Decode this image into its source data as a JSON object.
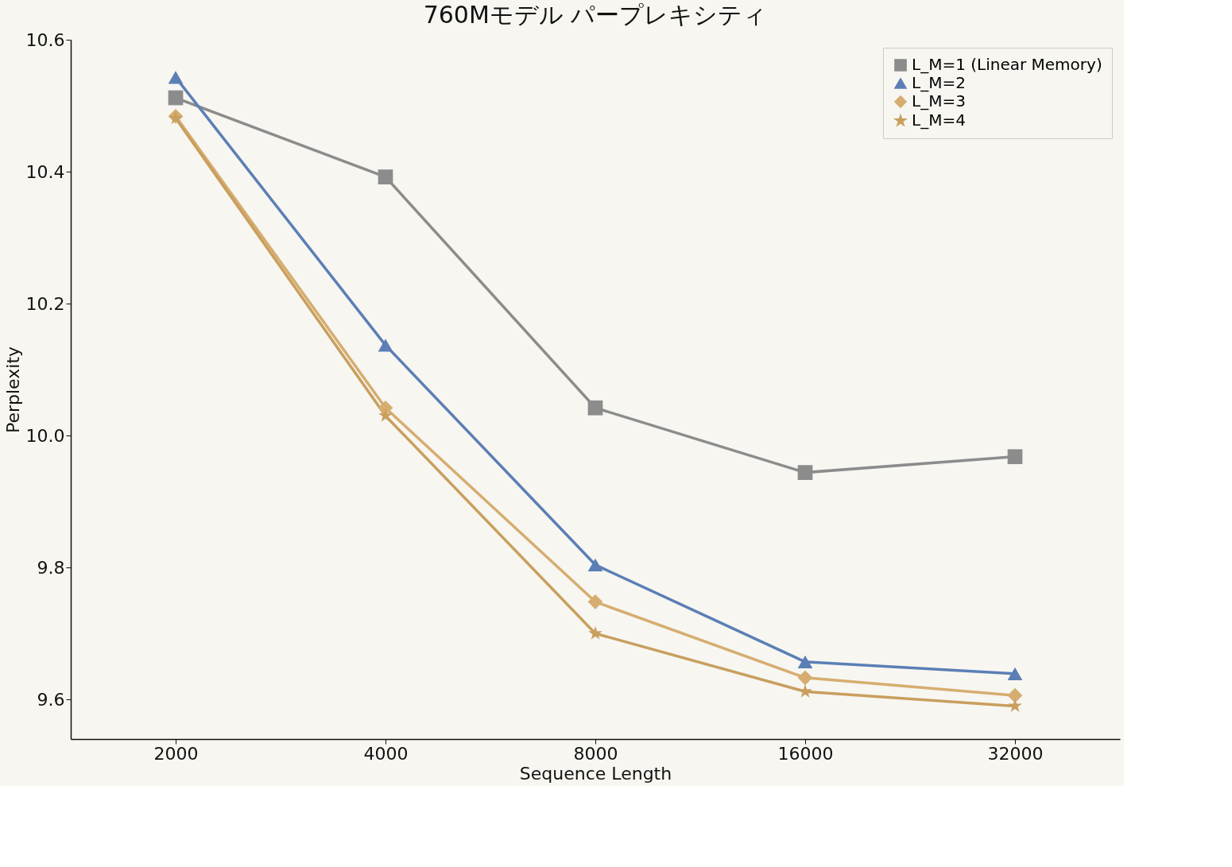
{
  "chart_data": {
    "type": "line",
    "title": "760Mモデル パープレキシティ",
    "xlabel": "Sequence Length",
    "ylabel": "Perplexity",
    "categories": [
      "2000",
      "4000",
      "8000",
      "16000",
      "32000"
    ],
    "ylim": [
      9.54,
      10.6
    ],
    "yticks": [
      {
        "value": 9.6,
        "label": "9.6"
      },
      {
        "value": 9.8,
        "label": "9.8"
      },
      {
        "value": 10.0,
        "label": "10.0"
      },
      {
        "value": 10.2,
        "label": "10.2"
      },
      {
        "value": 10.4,
        "label": "10.4"
      },
      {
        "value": 10.6,
        "label": "10.6"
      }
    ],
    "grid": false,
    "legend": "top right",
    "line_style": "solid",
    "series": [
      {
        "name": "L_M=1 (Linear Memory)",
        "color": "#8c8c8c",
        "marker": "square",
        "values": [
          10.512,
          10.392,
          10.042,
          9.944,
          9.968
        ]
      },
      {
        "name": "L_M=2",
        "color": "#5b7fb5",
        "marker": "triangle",
        "values": [
          10.543,
          10.137,
          9.804,
          9.657,
          9.639
        ]
      },
      {
        "name": "L_M=3",
        "color": "#d6ad70",
        "marker": "diamond",
        "values": [
          10.484,
          10.042,
          9.748,
          9.633,
          9.606
        ]
      },
      {
        "name": "L_M=4",
        "color": "#c99f5e",
        "marker": "star",
        "values": [
          10.481,
          10.03,
          9.7,
          9.612,
          9.59
        ]
      }
    ]
  }
}
